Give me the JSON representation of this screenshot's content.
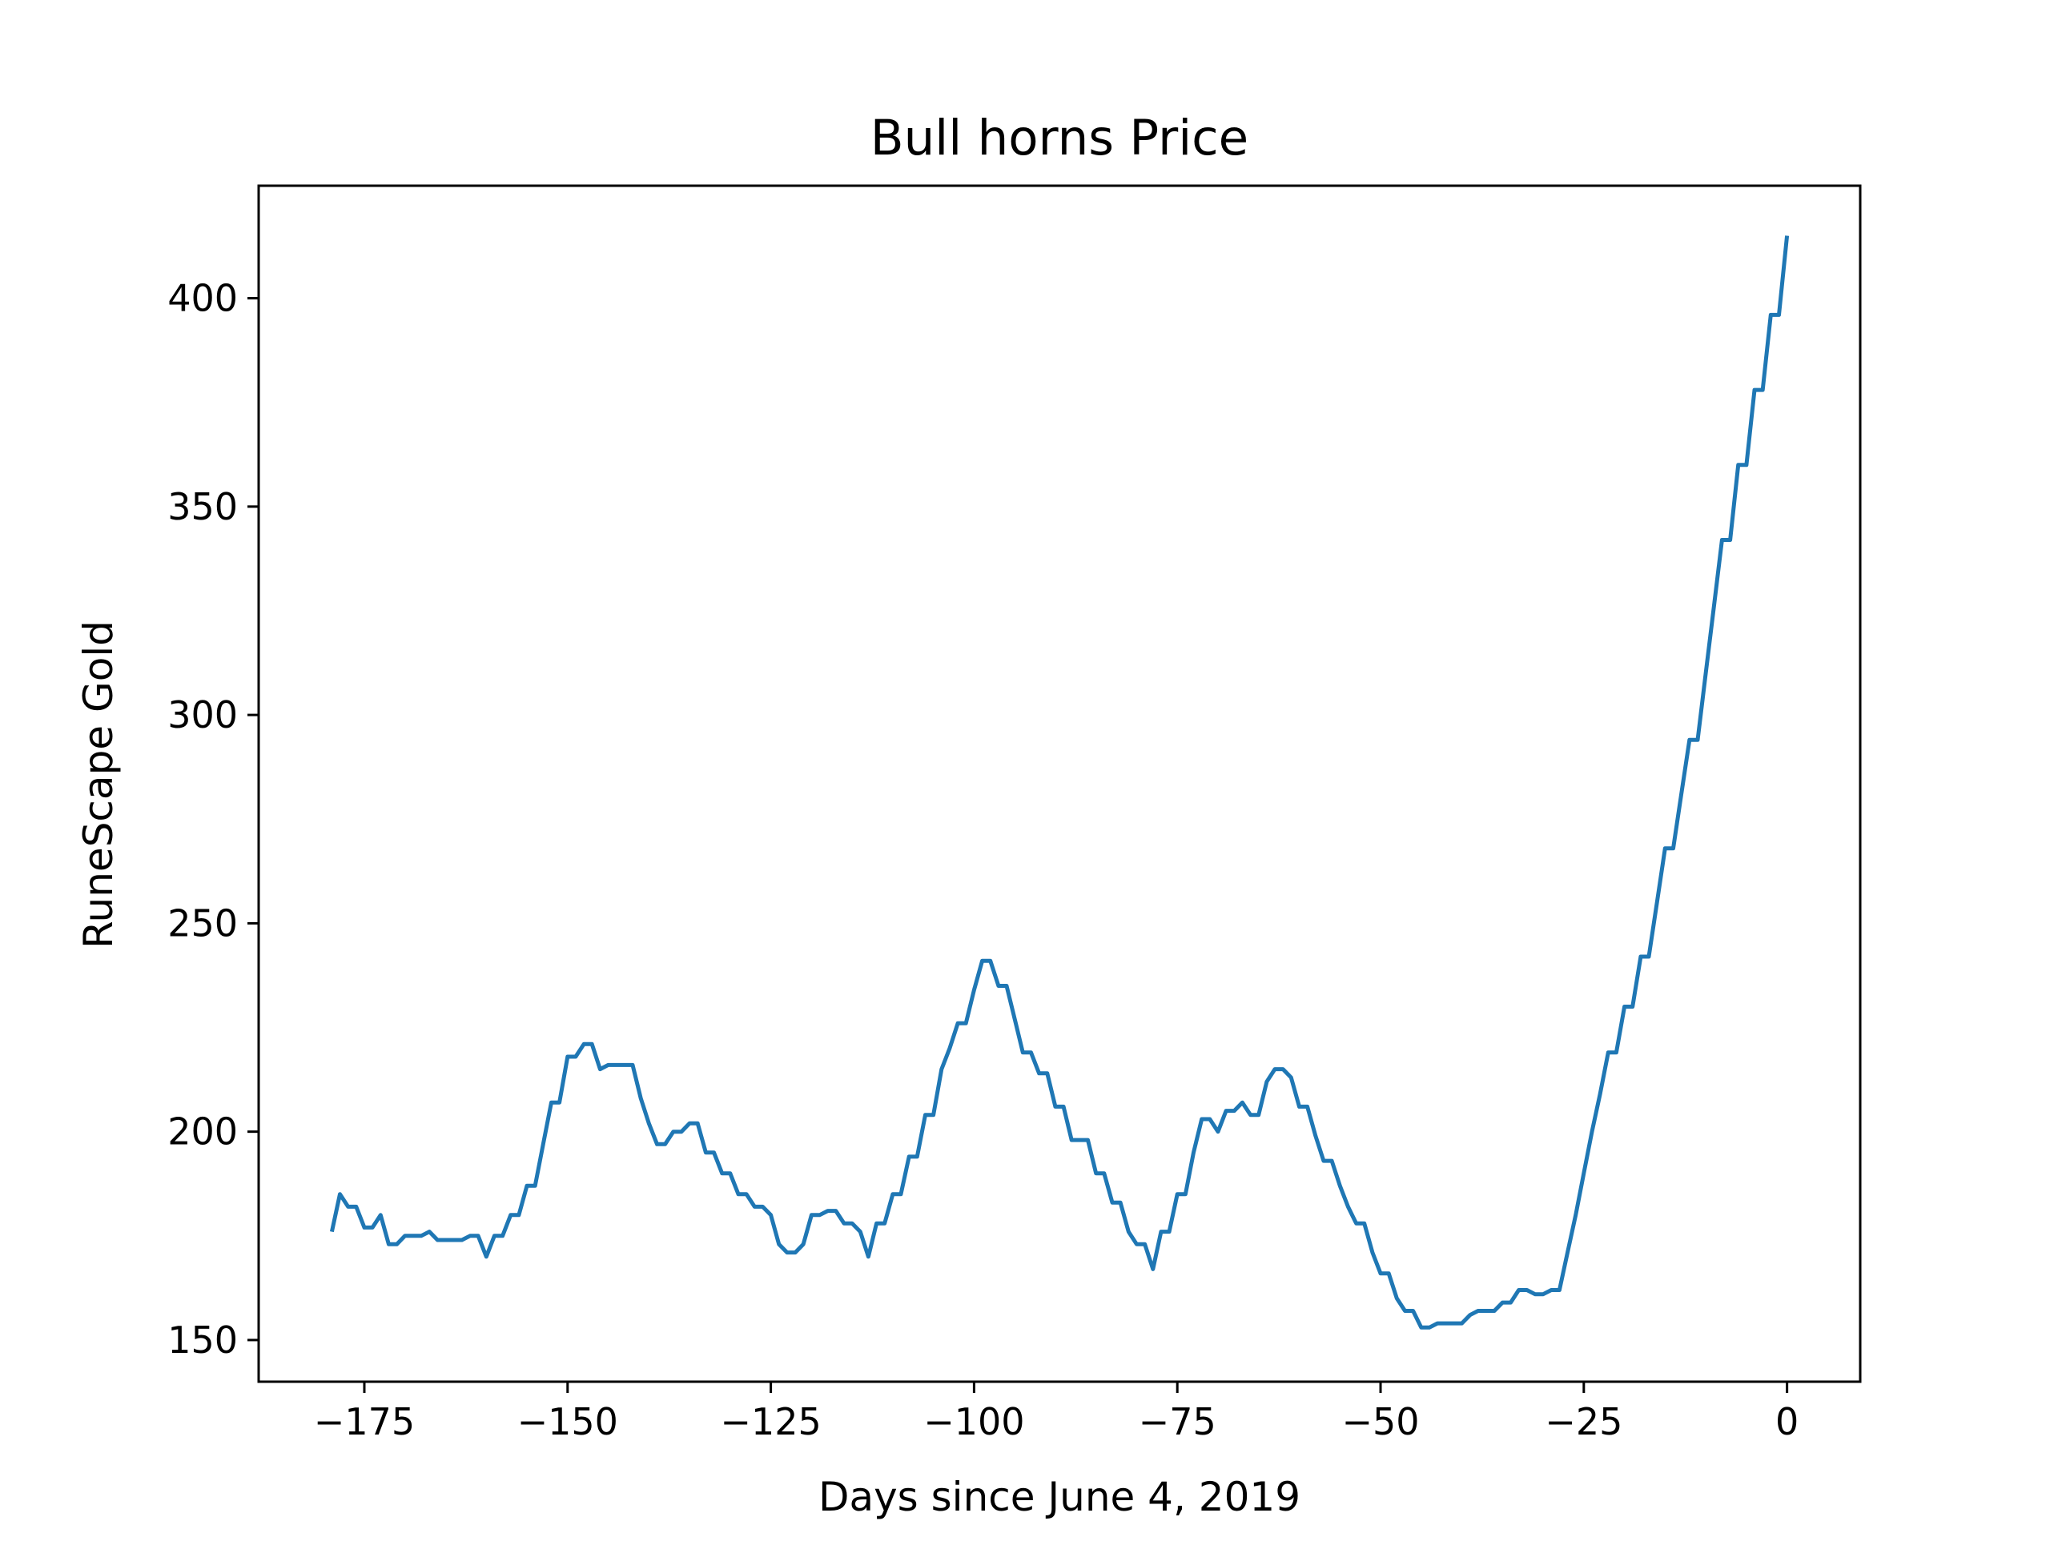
{
  "chart_data": {
    "type": "line",
    "title": "Bull horns Price",
    "xlabel": "Days since June 4, 2019",
    "ylabel": "RuneScape Gold",
    "xlim": [
      -188,
      9
    ],
    "ylim": [
      140,
      427
    ],
    "xticks": [
      -175,
      -150,
      -125,
      -100,
      -75,
      -50,
      -25,
      0
    ],
    "yticks": [
      150,
      200,
      250,
      300,
      350,
      400
    ],
    "xtick_labels": [
      "−175",
      "−150",
      "−125",
      "−100",
      "−75",
      "−50",
      "−25",
      "0"
    ],
    "ytick_labels": [
      "150",
      "200",
      "250",
      "300",
      "350",
      "400"
    ],
    "grid": false,
    "legend": "none",
    "series": [
      {
        "color": "#1f77b4",
        "x": [
          -179,
          -178,
          -177,
          -176,
          -175,
          -174,
          -173,
          -172,
          -171,
          -170,
          -169,
          -168,
          -167,
          -166,
          -165,
          -164,
          -163,
          -162,
          -161,
          -160,
          -159,
          -158,
          -157,
          -156,
          -155,
          -154,
          -153,
          -152,
          -151,
          -150,
          -149,
          -148,
          -147,
          -146,
          -145,
          -144,
          -143,
          -142,
          -141,
          -140,
          -139,
          -138,
          -137,
          -136,
          -135,
          -134,
          -133,
          -132,
          -131,
          -130,
          -129,
          -128,
          -127,
          -126,
          -125,
          -124,
          -123,
          -122,
          -121,
          -120,
          -119,
          -118,
          -117,
          -116,
          -115,
          -114,
          -113,
          -112,
          -111,
          -110,
          -109,
          -108,
          -107,
          -106,
          -105,
          -104,
          -103,
          -102,
          -101,
          -100,
          -99,
          -98,
          -97,
          -96,
          -95,
          -94,
          -93,
          -92,
          -91,
          -90,
          -89,
          -88,
          -87,
          -86,
          -85,
          -84,
          -83,
          -82,
          -81,
          -80,
          -79,
          -78,
          -77,
          -76,
          -75,
          -74,
          -73,
          -72,
          -71,
          -70,
          -69,
          -68,
          -67,
          -66,
          -65,
          -64,
          -63,
          -62,
          -61,
          -60,
          -59,
          -58,
          -57,
          -56,
          -55,
          -54,
          -53,
          -52,
          -51,
          -50,
          -49,
          -48,
          -47,
          -46,
          -45,
          -44,
          -43,
          -42,
          -41,
          -40,
          -39,
          -38,
          -37,
          -36,
          -35,
          -34,
          -33,
          -32,
          -31,
          -30,
          -29,
          -28,
          -27,
          -26,
          -25,
          -24,
          -23,
          -22,
          -21,
          -20,
          -19,
          -18,
          -17,
          -16,
          -15,
          -14,
          -13,
          -12,
          -11,
          -10,
          -9,
          -8,
          -7,
          -6,
          -5,
          -4,
          -3,
          -2,
          -1,
          0
        ],
        "y": [
          176,
          185,
          182,
          182,
          177,
          177,
          180,
          173,
          173,
          175,
          175,
          175,
          176,
          174,
          174,
          174,
          174,
          175,
          175,
          170,
          175,
          175,
          180,
          180,
          187,
          187,
          197,
          207,
          207,
          218,
          218,
          221,
          221,
          215,
          216,
          216,
          216,
          216,
          208,
          202,
          197,
          197,
          200,
          200,
          202,
          202,
          195,
          195,
          190,
          190,
          185,
          185,
          182,
          182,
          180,
          173,
          171,
          171,
          173,
          180,
          180,
          181,
          181,
          178,
          178,
          176,
          170,
          178,
          178,
          185,
          185,
          194,
          194,
          204,
          204,
          215,
          220,
          226,
          226,
          234,
          241,
          241,
          235,
          235,
          227,
          219,
          219,
          214,
          214,
          206,
          206,
          198,
          198,
          198,
          190,
          190,
          183,
          183,
          176,
          173,
          173,
          167,
          176,
          176,
          185,
          185,
          195,
          203,
          203,
          200,
          205,
          205,
          207,
          204,
          204,
          212,
          215,
          215,
          213,
          206,
          206,
          199,
          193,
          193,
          187,
          182,
          178,
          178,
          171,
          166,
          166,
          160,
          157,
          157,
          153,
          153,
          154,
          154,
          154,
          154,
          156,
          157,
          157,
          157,
          159,
          159,
          162,
          162,
          161,
          161,
          162,
          162,
          171,
          180,
          190,
          200,
          209,
          219,
          219,
          230,
          230,
          242,
          242,
          255,
          268,
          268,
          281,
          294,
          294,
          310,
          326,
          342,
          342,
          360,
          360,
          378,
          378,
          396,
          396,
          415
        ]
      }
    ]
  }
}
